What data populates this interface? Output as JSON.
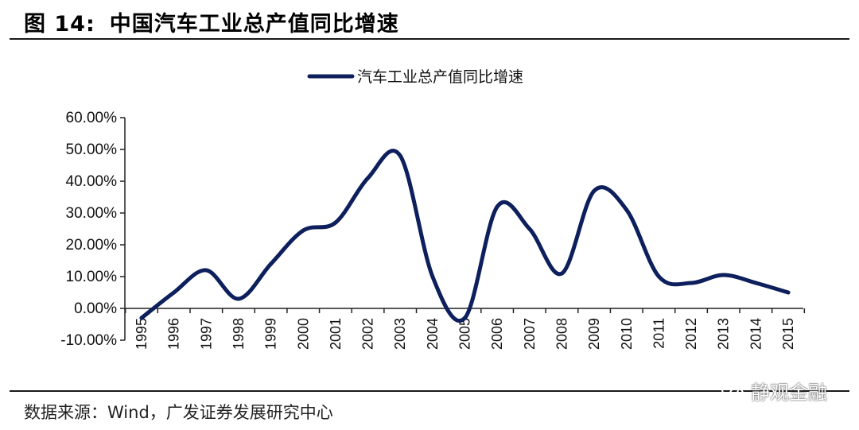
{
  "figure": {
    "number_label": "图 14:",
    "title": "中国汽车工业总产值同比增速",
    "source": "数据来源：Wind，广发证券发展研究中心",
    "watermark": "静观金融",
    "watermark_icon": "wechat-icon"
  },
  "chart_data": {
    "type": "line",
    "title": "",
    "xlabel": "",
    "ylabel": "",
    "x": [
      "1995",
      "1996",
      "1997",
      "1998",
      "1999",
      "2000",
      "2001",
      "2002",
      "2003",
      "2004",
      "2005",
      "2006",
      "2007",
      "2008",
      "2009",
      "2010",
      "2011",
      "2012",
      "2013",
      "2014",
      "2015"
    ],
    "series": [
      {
        "name": "汽车工业总产值同比增速",
        "values": [
          -3,
          5,
          12,
          3,
          14,
          24.5,
          27,
          41,
          48,
          10,
          -3,
          32,
          25,
          11,
          37,
          31,
          10,
          8,
          10.5,
          8,
          5
        ],
        "color": "#0d1f5c"
      }
    ],
    "ylim": [
      -10,
      60
    ],
    "yticks": [
      -10,
      0,
      10,
      20,
      30,
      40,
      50,
      60
    ],
    "ytick_labels": [
      "-10.00%",
      "0.00%",
      "10.00%",
      "20.00%",
      "30.00%",
      "40.00%",
      "50.00%",
      "60.00%"
    ],
    "legend_position": "top-center",
    "grid": false,
    "smooth": true
  }
}
